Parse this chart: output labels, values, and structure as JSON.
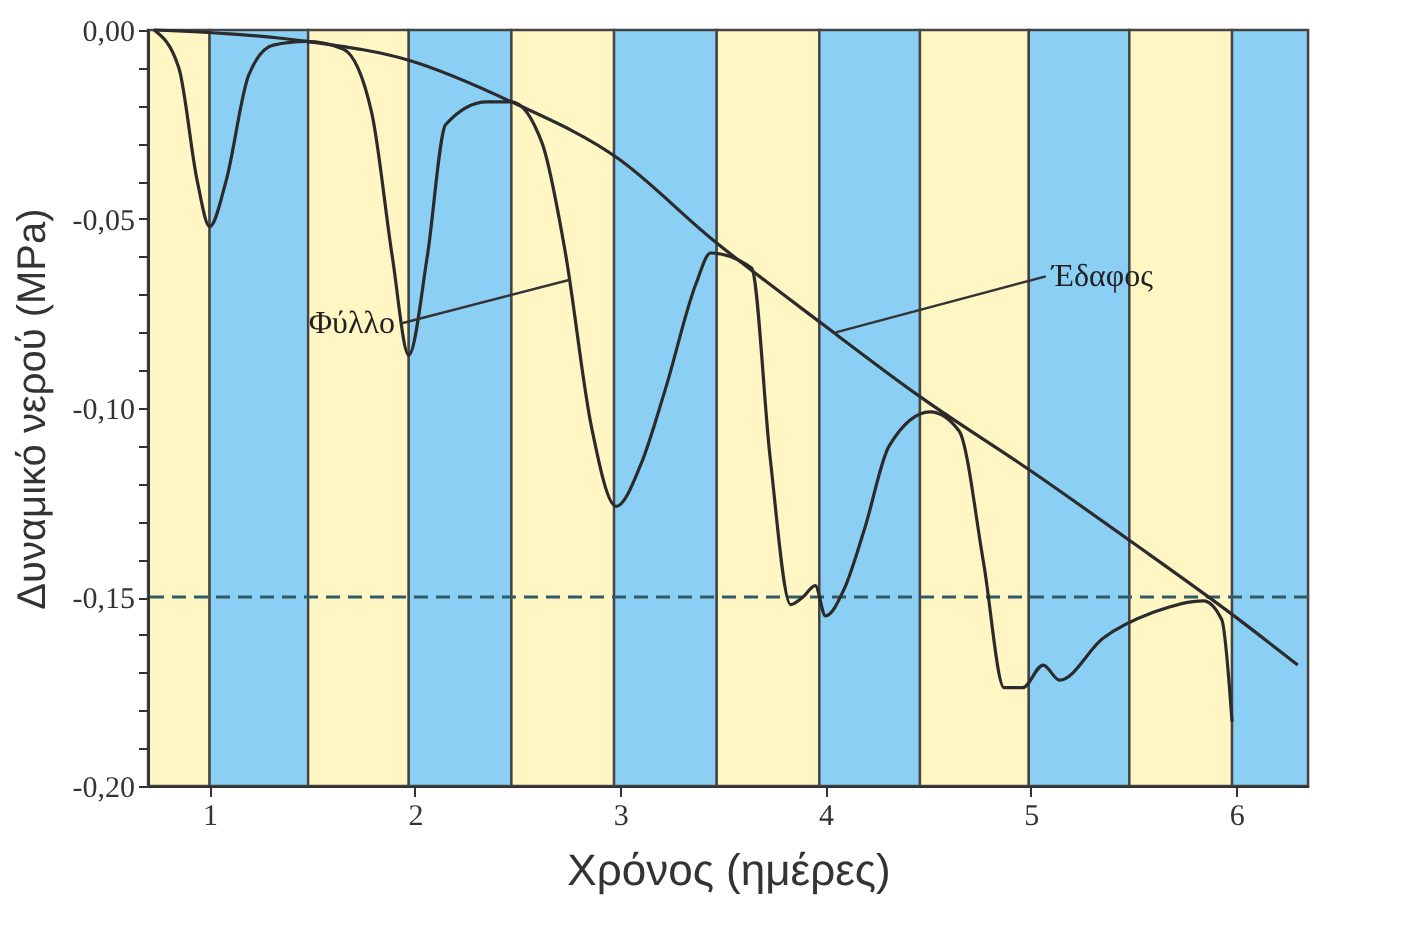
{
  "chart_data": {
    "type": "line",
    "xlabel": "Χρόνος (ημέρες)",
    "ylabel": "Δυναμικό νερού (MPa)",
    "xlim": [
      0.7,
      6.35
    ],
    "xticks": [
      1,
      2,
      3,
      4,
      5,
      6
    ],
    "ylim": [
      -0.2,
      0.0
    ],
    "yticks": [
      {
        "value": 0,
        "label": "0,00"
      },
      {
        "value": -0.01,
        "label": null
      },
      {
        "value": -0.02,
        "label": null
      },
      {
        "value": -0.03,
        "label": null
      },
      {
        "value": -0.04,
        "label": null
      },
      {
        "value": -0.05,
        "label": "-0,05"
      },
      {
        "value": -0.06,
        "label": null
      },
      {
        "value": -0.07,
        "label": null
      },
      {
        "value": -0.08,
        "label": null
      },
      {
        "value": -0.09,
        "label": null
      },
      {
        "value": -0.1,
        "label": "-0,10"
      },
      {
        "value": -0.11,
        "label": null
      },
      {
        "value": -0.12,
        "label": null
      },
      {
        "value": -0.13,
        "label": null
      },
      {
        "value": -0.14,
        "label": null
      },
      {
        "value": -0.15,
        "label": "-0,15"
      },
      {
        "value": -0.16,
        "label": null
      },
      {
        "value": -0.17,
        "label": null
      },
      {
        "value": -0.18,
        "label": null
      },
      {
        "value": -0.19,
        "label": null
      },
      {
        "value": -0.2,
        "label": "-0,20"
      }
    ],
    "grid": false,
    "marker": "none",
    "series": [
      {
        "color": "#2b2b2b",
        "x": [
          0.73,
          0.85,
          0.94,
          1.0,
          1.08,
          1.19,
          1.31,
          1.47,
          1.65,
          1.79,
          1.89,
          1.97,
          2.06,
          2.15,
          2.35,
          2.47,
          2.62,
          2.73,
          2.86,
          2.98,
          3.1,
          3.22,
          3.37,
          3.44,
          3.64,
          3.73,
          3.83,
          3.89,
          3.95,
          4.0,
          4.09,
          4.19,
          4.31,
          4.51,
          4.65,
          4.77,
          4.87,
          4.96,
          5.06,
          5.14,
          5.35,
          5.6,
          5.84,
          5.93,
          5.98
        ],
        "values": [
          0.0,
          -0.01,
          -0.04,
          -0.052,
          -0.04,
          -0.012,
          -0.004,
          -0.003,
          -0.005,
          -0.022,
          -0.06,
          -0.086,
          -0.06,
          -0.025,
          -0.019,
          -0.019,
          -0.03,
          -0.058,
          -0.105,
          -0.126,
          -0.115,
          -0.095,
          -0.067,
          -0.059,
          -0.063,
          -0.113,
          -0.152,
          -0.15,
          -0.147,
          -0.155,
          -0.148,
          -0.132,
          -0.11,
          -0.101,
          -0.106,
          -0.141,
          -0.174,
          -0.174,
          -0.168,
          -0.172,
          -0.161,
          -0.154,
          -0.151,
          -0.156,
          -0.183
        ]
      },
      {
        "color": "#2b2b2b",
        "x": [
          0.73,
          1.47,
          1.97,
          2.47,
          2.99,
          3.44,
          3.99,
          4.46,
          5.01,
          5.48,
          5.99,
          6.3
        ],
        "values": [
          0.0,
          -0.003,
          -0.008,
          -0.019,
          -0.034,
          -0.055,
          -0.078,
          -0.097,
          -0.117,
          -0.135,
          -0.155,
          -0.168
        ]
      }
    ],
    "ref_lines": [
      {
        "axis": "y",
        "value": -0.15,
        "color": "#2f5a66",
        "line_style": "dashed"
      }
    ],
    "bands": [
      {
        "axis": "x",
        "from": 0.7,
        "to": 1.0,
        "color": "#fff6c4"
      },
      {
        "axis": "x",
        "from": 1.0,
        "to": 1.48,
        "color": "#8ccff5"
      },
      {
        "axis": "x",
        "from": 1.48,
        "to": 1.97,
        "color": "#fff6c4"
      },
      {
        "axis": "x",
        "from": 1.97,
        "to": 2.47,
        "color": "#8ccff5"
      },
      {
        "axis": "x",
        "from": 2.47,
        "to": 2.97,
        "color": "#fff6c4"
      },
      {
        "axis": "x",
        "from": 2.97,
        "to": 3.47,
        "color": "#8ccff5"
      },
      {
        "axis": "x",
        "from": 3.47,
        "to": 3.97,
        "color": "#fff6c4"
      },
      {
        "axis": "x",
        "from": 3.97,
        "to": 4.46,
        "color": "#8ccff5"
      },
      {
        "axis": "x",
        "from": 4.46,
        "to": 4.99,
        "color": "#fff6c4"
      },
      {
        "axis": "x",
        "from": 4.99,
        "to": 5.48,
        "color": "#8ccff5"
      },
      {
        "axis": "x",
        "from": 5.48,
        "to": 5.98,
        "color": "#fff6c4"
      },
      {
        "axis": "x",
        "from": 5.98,
        "to": 6.35,
        "color": "#8ccff5"
      }
    ],
    "annotations": [
      {
        "text": "Φύλλο",
        "x": 2.76,
        "y": -0.066
      },
      {
        "text": "Έδαφος",
        "x": 4.05,
        "y": -0.08
      }
    ]
  }
}
